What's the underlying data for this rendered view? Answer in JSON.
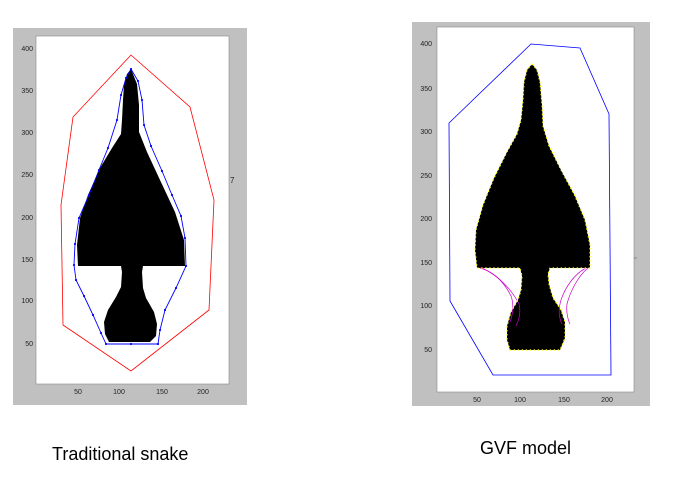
{
  "captions": {
    "left": "Traditional snake",
    "right": "GVF model"
  },
  "stray_label": "7",
  "panels": {
    "left": {
      "x_ticks": [
        "50",
        "100",
        "150",
        "200"
      ],
      "y_ticks": [
        "50",
        "100",
        "150",
        "200",
        "250",
        "300",
        "350",
        "400"
      ]
    },
    "right": {
      "x_ticks": [
        "50",
        "100",
        "150",
        "200"
      ],
      "y_ticks": [
        "50",
        "100",
        "150",
        "200",
        "250",
        "300",
        "350",
        "400"
      ]
    }
  },
  "colors": {
    "figure_background": "#c0c0c0",
    "shape": "#000000",
    "initial_contour_left": "#ff0000",
    "final_contour_left": "#0000ff",
    "initial_contour_right": "#0000ff",
    "intermediate_contours_right": "#cc00cc",
    "final_contour_right": "#ffff00"
  },
  "icons": {
    "left_contour_vertices": "blue-dot-markers"
  }
}
